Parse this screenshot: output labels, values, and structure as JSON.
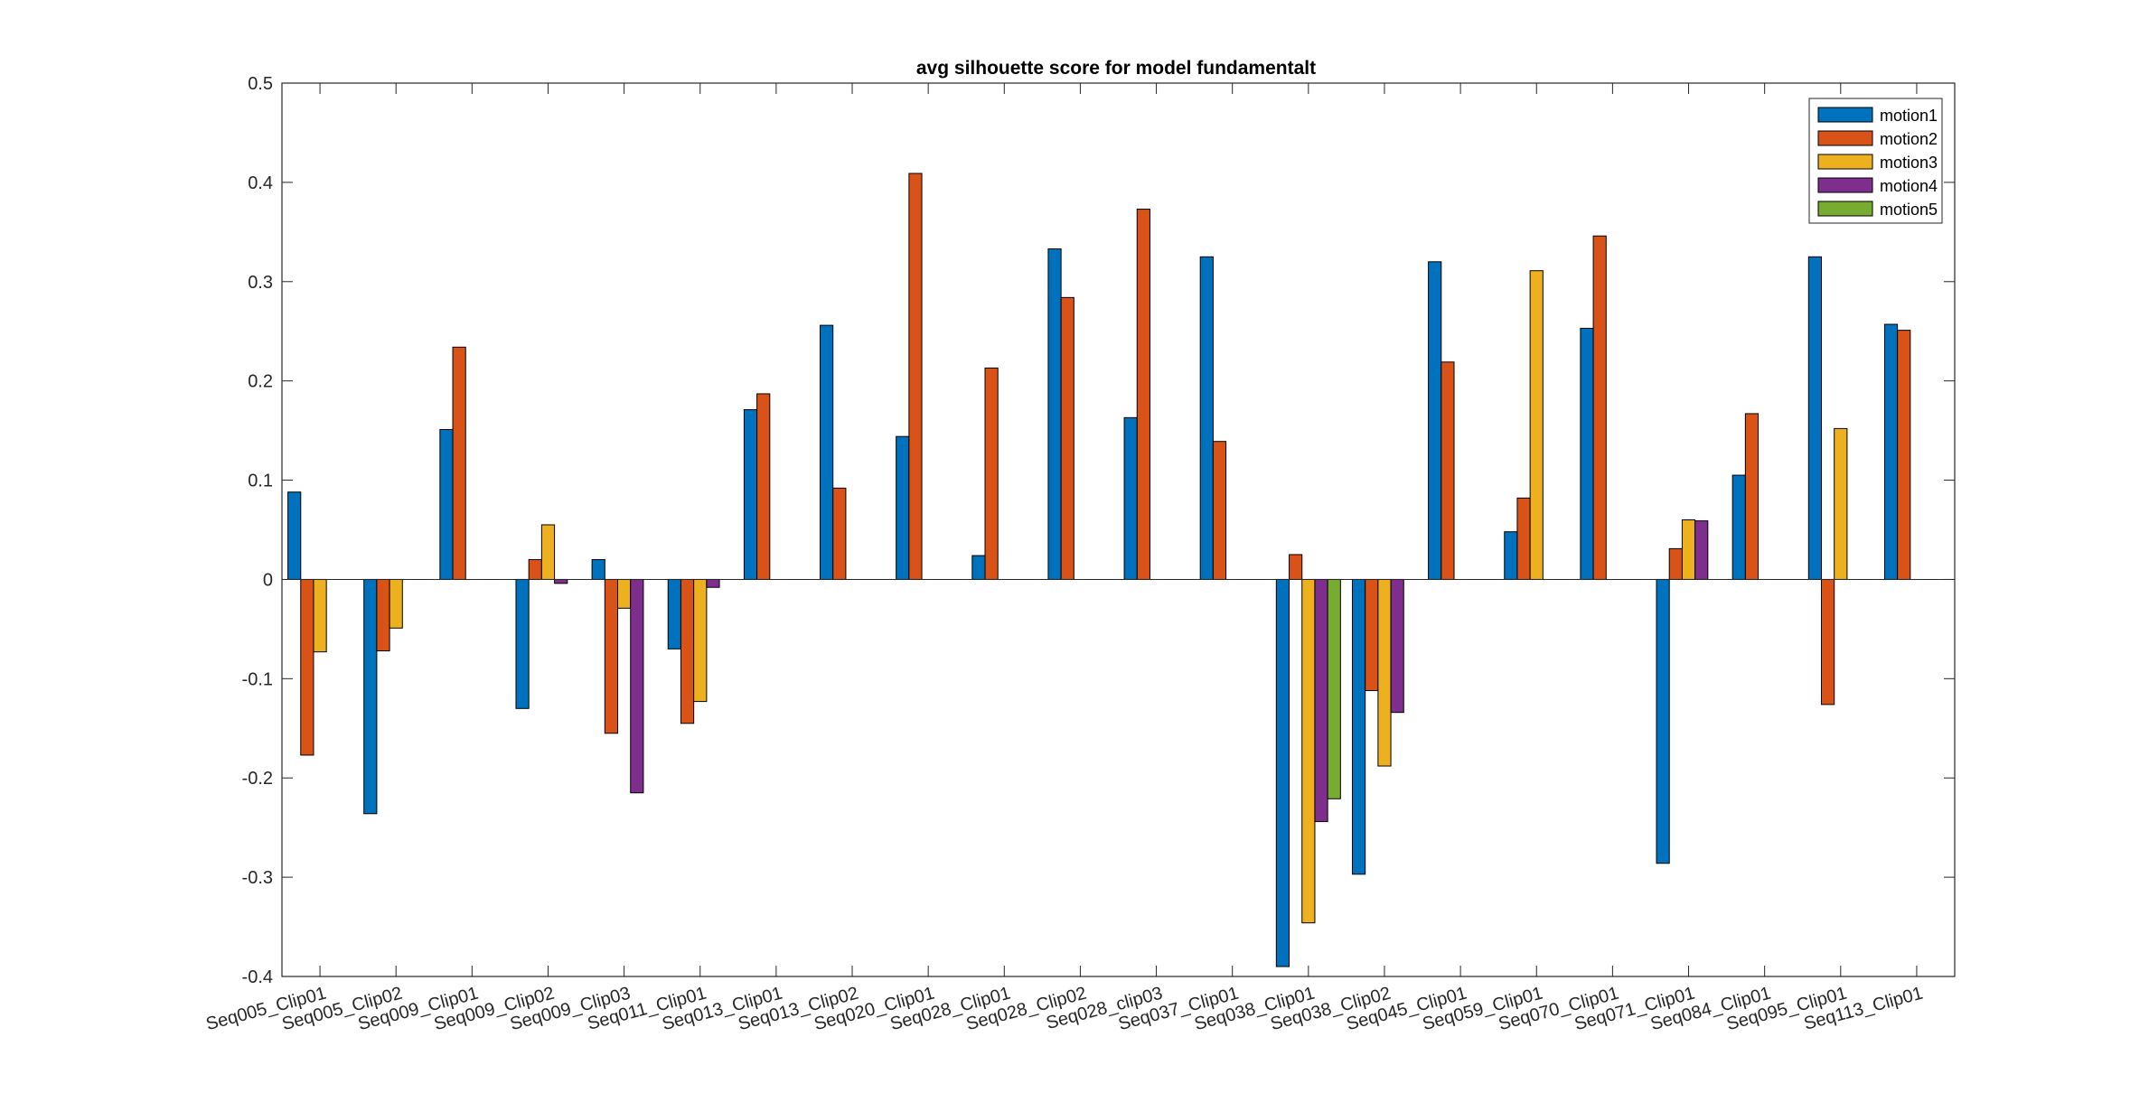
{
  "chart_data": {
    "type": "bar",
    "title": "avg silhouette score for model fundamentalt",
    "xlabel": "",
    "ylabel": "",
    "ylim": [
      -0.4,
      0.5
    ],
    "yticks": [
      "-0.4",
      "-0.3",
      "-0.2",
      "-0.1",
      "0",
      "0.1",
      "0.2",
      "0.3",
      "0.4",
      "0.5"
    ],
    "grid": false,
    "legend_position": "top-right",
    "categories": [
      "Seq005_Clip01",
      "Seq005_Clip02",
      "Seq009_Clip01",
      "Seq009_Clip02",
      "Seq009_Clip03",
      "Seq011_Clip01",
      "Seq013_Clip01",
      "Seq013_Clip02",
      "Seq020_Clip01",
      "Seq028_Clip01",
      "Seq028_Clip02",
      "Seq028_clip03",
      "Seq037_Clip01",
      "Seq038_Clip01",
      "Seq038_Clip02",
      "Seq045_Clip01",
      "Seq059_Clip01",
      "Seq070_Clip01",
      "Seq071_Clip01",
      "Seq084_Clip01",
      "Seq095_Clip01",
      "Seq113_Clip01"
    ],
    "series": [
      {
        "name": "motion1",
        "color": "#0072BD",
        "values": [
          0.088,
          -0.236,
          0.151,
          -0.13,
          0.02,
          -0.07,
          0.171,
          0.256,
          0.144,
          0.024,
          0.333,
          0.163,
          0.325,
          -0.39,
          -0.297,
          0.32,
          0.048,
          0.253,
          -0.286,
          0.105,
          0.325,
          0.257
        ]
      },
      {
        "name": "motion2",
        "color": "#D95319",
        "values": [
          -0.177,
          -0.072,
          0.234,
          0.02,
          -0.155,
          -0.145,
          0.187,
          0.092,
          0.409,
          0.213,
          0.284,
          0.373,
          0.139,
          0.025,
          -0.112,
          0.219,
          0.082,
          0.346,
          0.031,
          0.167,
          -0.126,
          0.251
        ]
      },
      {
        "name": "motion3",
        "color": "#EDB120",
        "values": [
          -0.073,
          -0.049,
          0,
          0.055,
          -0.029,
          -0.123,
          0,
          0,
          0,
          0,
          0,
          0,
          0,
          -0.346,
          -0.188,
          0,
          0.311,
          0,
          0.06,
          0,
          0.152,
          0
        ]
      },
      {
        "name": "motion4",
        "color": "#7E2F8E",
        "values": [
          0,
          0,
          0,
          -0.004,
          -0.215,
          -0.008,
          0,
          0,
          0,
          0,
          0,
          0,
          0,
          -0.244,
          -0.134,
          0,
          0,
          0,
          0.059,
          0,
          0,
          0
        ]
      },
      {
        "name": "motion5",
        "color": "#77AC30",
        "values": [
          0,
          0,
          0,
          0,
          0,
          0,
          0,
          0,
          0,
          0,
          0,
          0,
          0,
          -0.221,
          0,
          0,
          0,
          0,
          0,
          0,
          0,
          0
        ]
      }
    ]
  }
}
